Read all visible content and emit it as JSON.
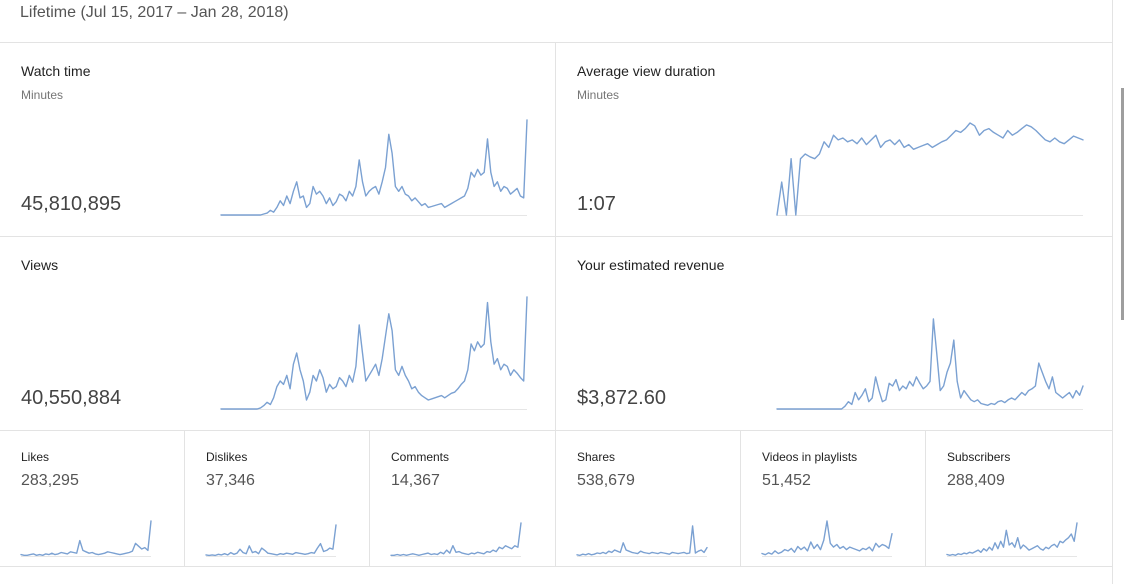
{
  "header": {
    "title": "Lifetime (Jul 15, 2017 – Jan 28, 2018)"
  },
  "colors": {
    "line": "#7ba1d2",
    "border": "#e3e3e3",
    "text": "#333333",
    "muted": "#757575"
  },
  "cards": {
    "watch_time": {
      "title": "Watch time",
      "unit": "Minutes",
      "value": "45,810,895"
    },
    "avg_duration": {
      "title": "Average view duration",
      "unit": "Minutes",
      "value": "1:07"
    },
    "views": {
      "title": "Views",
      "value": "40,550,884"
    },
    "revenue": {
      "title": "Your estimated revenue",
      "value": "$3,872.60"
    }
  },
  "small_cards": {
    "likes": {
      "title": "Likes",
      "value": "283,295"
    },
    "dislikes": {
      "title": "Dislikes",
      "value": "37,346"
    },
    "comments": {
      "title": "Comments",
      "value": "14,367"
    },
    "shares": {
      "title": "Shares",
      "value": "538,679"
    },
    "playlists": {
      "title": "Videos in playlists",
      "value": "51,452"
    },
    "subscribers": {
      "title": "Subscribers",
      "value": "288,409"
    }
  },
  "sparklines": {
    "watch_time": [
      0,
      0,
      0,
      0,
      0,
      0,
      0,
      0,
      0,
      0,
      0,
      0,
      0,
      1,
      2,
      5,
      3,
      8,
      15,
      10,
      20,
      12,
      25,
      35,
      18,
      20,
      8,
      12,
      30,
      22,
      25,
      20,
      12,
      18,
      10,
      14,
      22,
      20,
      15,
      25,
      20,
      30,
      58,
      35,
      20,
      25,
      28,
      30,
      22,
      35,
      50,
      85,
      65,
      30,
      25,
      30,
      22,
      20,
      15,
      18,
      14,
      10,
      12,
      8,
      9,
      10,
      11,
      12,
      8,
      10,
      12,
      14,
      16,
      18,
      20,
      28,
      45,
      40,
      48,
      42,
      45,
      80,
      45,
      30,
      35,
      25,
      30,
      28,
      22,
      25,
      28,
      20,
      18,
      100
    ],
    "avg_duration": [
      0,
      35,
      0,
      60,
      0,
      60,
      65,
      62,
      60,
      65,
      78,
      72,
      85,
      80,
      82,
      78,
      80,
      76,
      82,
      75,
      80,
      85,
      72,
      78,
      80,
      75,
      80,
      72,
      75,
      70,
      72,
      74,
      76,
      72,
      75,
      78,
      80,
      85,
      90,
      88,
      92,
      98,
      95,
      85,
      90,
      92,
      88,
      85,
      82,
      90,
      85,
      88,
      92,
      96,
      94,
      90,
      85,
      80,
      78,
      82,
      78,
      76,
      80,
      84,
      82,
      80
    ],
    "views": [
      0,
      0,
      0,
      0,
      0,
      0,
      0,
      0,
      0,
      0,
      0,
      0,
      1,
      3,
      6,
      4,
      10,
      20,
      25,
      22,
      30,
      18,
      40,
      50,
      35,
      25,
      8,
      15,
      30,
      25,
      35,
      28,
      15,
      22,
      18,
      20,
      28,
      25,
      20,
      30,
      24,
      38,
      75,
      50,
      25,
      30,
      35,
      40,
      30,
      45,
      65,
      85,
      70,
      35,
      30,
      38,
      30,
      25,
      18,
      20,
      15,
      12,
      10,
      8,
      9,
      10,
      11,
      12,
      10,
      12,
      14,
      15,
      18,
      22,
      25,
      35,
      58,
      52,
      60,
      55,
      58,
      95,
      60,
      40,
      45,
      35,
      40,
      38,
      30,
      35,
      32,
      28,
      25,
      100
    ],
    "revenue": [
      0,
      0,
      0,
      0,
      0,
      0,
      0,
      0,
      0,
      0,
      0,
      0,
      0,
      0,
      0,
      0,
      0,
      0,
      0,
      0,
      3,
      8,
      5,
      18,
      10,
      15,
      22,
      8,
      12,
      35,
      20,
      8,
      10,
      28,
      25,
      32,
      20,
      25,
      22,
      30,
      25,
      35,
      28,
      22,
      25,
      30,
      98,
      60,
      20,
      25,
      40,
      50,
      75,
      30,
      12,
      20,
      15,
      10,
      8,
      10,
      6,
      5,
      4,
      6,
      5,
      8,
      9,
      7,
      10,
      12,
      10,
      14,
      18,
      15,
      20,
      22,
      25,
      50,
      40,
      30,
      22,
      35,
      18,
      15,
      12,
      15,
      18,
      12,
      20,
      15,
      25
    ],
    "likes": [
      2,
      1,
      1,
      2,
      3,
      1,
      2,
      1,
      3,
      2,
      4,
      2,
      3,
      5,
      4,
      3,
      6,
      5,
      4,
      22,
      8,
      6,
      4,
      5,
      3,
      2,
      3,
      4,
      6,
      5,
      4,
      3,
      2,
      3,
      4,
      5,
      7,
      18,
      14,
      10,
      12,
      8,
      50
    ],
    "dislikes": [
      2,
      1,
      2,
      1,
      3,
      2,
      4,
      2,
      6,
      3,
      5,
      12,
      6,
      4,
      18,
      6,
      8,
      4,
      14,
      10,
      5,
      4,
      3,
      2,
      4,
      3,
      5,
      4,
      3,
      6,
      5,
      4,
      3,
      4,
      6,
      5,
      14,
      22,
      8,
      10,
      14,
      12,
      55
    ],
    "comments": [
      1,
      1,
      2,
      1,
      2,
      1,
      2,
      3,
      2,
      1,
      2,
      3,
      4,
      2,
      3,
      2,
      5,
      3,
      8,
      4,
      14,
      5,
      6,
      4,
      3,
      2,
      4,
      3,
      5,
      4,
      3,
      6,
      5,
      8,
      6,
      12,
      10,
      14,
      12,
      10,
      14,
      12,
      45
    ],
    "shares": [
      2,
      1,
      3,
      2,
      4,
      2,
      3,
      5,
      4,
      6,
      4,
      8,
      6,
      10,
      8,
      6,
      22,
      10,
      8,
      6,
      5,
      4,
      8,
      6,
      5,
      4,
      6,
      5,
      4,
      6,
      5,
      4,
      3,
      6,
      5,
      4,
      5,
      6,
      4,
      5,
      50,
      5,
      8,
      10,
      6,
      14
    ],
    "playlists": [
      4,
      2,
      5,
      3,
      8,
      4,
      6,
      10,
      8,
      12,
      6,
      15,
      10,
      14,
      8,
      22,
      12,
      18,
      10,
      25,
      55,
      20,
      14,
      18,
      12,
      15,
      10,
      14,
      12,
      10,
      8,
      12,
      10,
      14,
      8,
      20,
      14,
      18,
      16,
      12,
      35
    ],
    "subscribers": [
      2,
      1,
      2,
      1,
      3,
      2,
      4,
      3,
      5,
      4,
      6,
      8,
      5,
      10,
      7,
      12,
      8,
      18,
      10,
      20,
      12,
      35,
      15,
      18,
      12,
      25,
      10,
      15,
      12,
      8,
      10,
      12,
      14,
      10,
      8,
      12,
      10,
      14,
      16,
      12,
      20,
      18,
      22,
      25,
      30,
      20,
      45
    ]
  }
}
